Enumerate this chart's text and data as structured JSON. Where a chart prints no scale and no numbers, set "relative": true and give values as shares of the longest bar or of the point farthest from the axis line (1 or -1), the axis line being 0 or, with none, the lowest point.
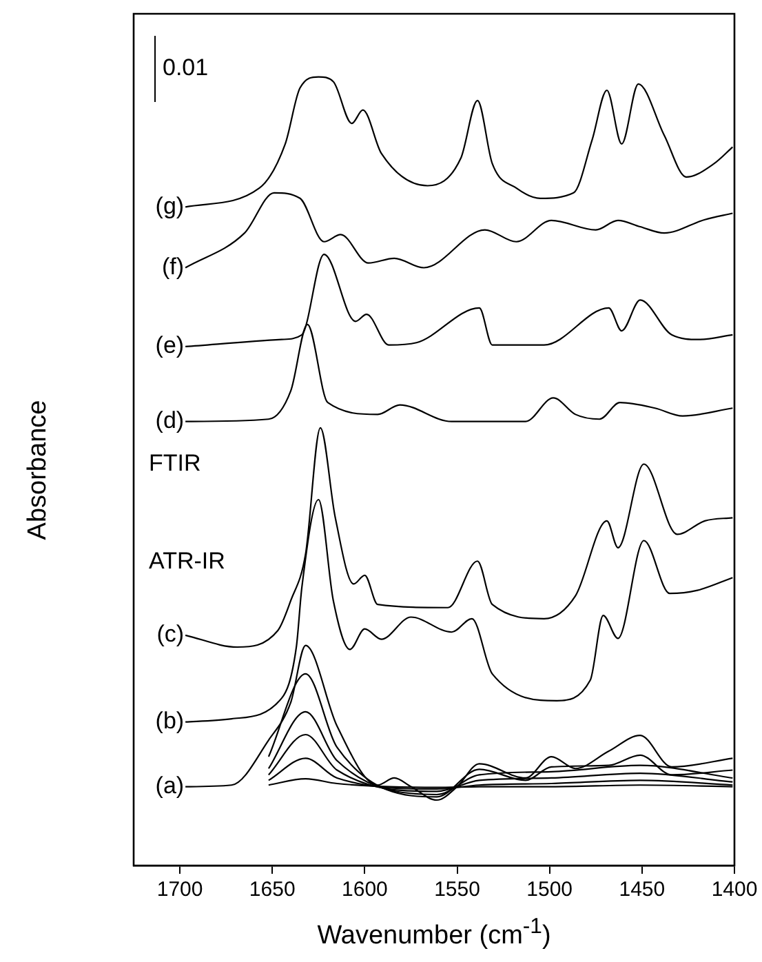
{
  "chart_data": {
    "type": "line",
    "relative": true,
    "xlabel": "Wavenumber (cm$^{-1}$)",
    "ylabel": "Absorbance",
    "xlim": [
      1725,
      1400
    ],
    "xticks": [
      1700,
      1650,
      1600,
      1550,
      1500,
      1450,
      1400
    ],
    "grid": false,
    "legend": false,
    "marker": "none",
    "line_style": "solid",
    "annotations": [
      "0.01",
      "FTIR",
      "ATR-IR"
    ],
    "series": [
      {
        "name": "(g)",
        "color": "#000000",
        "x": [
          1697,
          1657,
          1643,
          1635,
          1625,
          1617,
          1607,
          1601,
          1591,
          1566,
          1548,
          1539,
          1531,
          1518,
          1505,
          1487,
          1477,
          1469,
          1461,
          1452,
          1438,
          1426,
          1411,
          1401
        ],
        "values": [
          0.835,
          0.859,
          0.915,
          0.986,
          1,
          0.994,
          0.941,
          0.958,
          0.903,
          0.862,
          0.897,
          0.97,
          0.89,
          0.859,
          0.846,
          0.853,
          0.92,
          0.983,
          0.915,
          0.991,
          0.926,
          0.873,
          0.89,
          0.911
        ]
      },
      {
        "name": "(f)",
        "color": "#000000",
        "x": [
          1697,
          1665,
          1649,
          1635,
          1622,
          1613,
          1598,
          1584,
          1568,
          1535,
          1518,
          1499,
          1475,
          1463,
          1451,
          1438,
          1416,
          1401
        ],
        "values": [
          0.758,
          0.802,
          0.853,
          0.846,
          0.791,
          0.8,
          0.764,
          0.77,
          0.758,
          0.806,
          0.791,
          0.818,
          0.806,
          0.818,
          0.81,
          0.802,
          0.819,
          0.827
        ]
      },
      {
        "name": "(e)",
        "color": "#000000",
        "x": [
          1697,
          1645,
          1634,
          1622,
          1605,
          1599,
          1587,
          1572,
          1538,
          1531,
          1503,
          1468,
          1461,
          1451,
          1434,
          1419,
          1401
        ],
        "values": [
          0.658,
          0.667,
          0.673,
          0.775,
          0.69,
          0.699,
          0.66,
          0.663,
          0.707,
          0.66,
          0.66,
          0.707,
          0.678,
          0.717,
          0.673,
          0.667,
          0.673
        ]
      },
      {
        "name": "(d)",
        "color": "#000000",
        "x": [
          1697,
          1652,
          1640,
          1631,
          1620,
          1593,
          1581,
          1553,
          1513,
          1498,
          1486,
          1473,
          1462,
          1443,
          1428,
          1401
        ],
        "values": [
          0.563,
          0.566,
          0.602,
          0.686,
          0.587,
          0.572,
          0.584,
          0.563,
          0.563,
          0.593,
          0.572,
          0.566,
          0.587,
          0.58,
          0.57,
          0.58
        ]
      },
      {
        "name": "(c)",
        "color": "#000000",
        "x": [
          1697,
          1669,
          1647,
          1640,
          1632,
          1624,
          1616,
          1606,
          1600,
          1593,
          1555,
          1539,
          1531,
          1503,
          1486,
          1469,
          1463,
          1449,
          1431,
          1416,
          1401
        ],
        "values": [
          0.292,
          0.277,
          0.298,
          0.336,
          0.395,
          0.555,
          0.442,
          0.357,
          0.368,
          0.331,
          0.327,
          0.386,
          0.331,
          0.313,
          0.342,
          0.437,
          0.403,
          0.509,
          0.42,
          0.437,
          0.441
        ]
      },
      {
        "name": "(b)",
        "color": "#000000",
        "x": [
          1697,
          1672,
          1645,
          1637,
          1634,
          1625,
          1617,
          1608,
          1600,
          1591,
          1575,
          1553,
          1542,
          1531,
          1496,
          1478,
          1471,
          1463,
          1449,
          1435,
          1420,
          1401
        ],
        "values": [
          0.182,
          0.186,
          0.212,
          0.277,
          0.353,
          0.464,
          0.336,
          0.274,
          0.3,
          0.287,
          0.315,
          0.296,
          0.313,
          0.243,
          0.209,
          0.235,
          0.317,
          0.288,
          0.412,
          0.345,
          0.349,
          0.365
        ]
      },
      {
        "name": "(a)",
        "color": "#000000",
        "x": [
          1697,
          1672,
          1652,
          1640,
          1632,
          1615,
          1593,
          1584,
          1575,
          1561,
          1550,
          1538,
          1513,
          1499,
          1486,
          1468,
          1451,
          1434,
          1401
        ],
        "values": [
          0.1,
          0.102,
          0.159,
          0.207,
          0.279,
          0.177,
          0.102,
          0.111,
          0.1,
          0.083,
          0.1,
          0.129,
          0.111,
          0.138,
          0.123,
          0.145,
          0.165,
          0.125,
          0.136
        ]
      },
      {
        "color": "#000000",
        "x": [
          1652,
          1632,
          1615,
          1561,
          1538,
          1513,
          1499,
          1468,
          1451,
          1434,
          1401
        ],
        "values": [
          0.138,
          0.243,
          0.15,
          0.087,
          0.122,
          0.108,
          0.125,
          0.127,
          0.14,
          0.115,
          0.121
        ]
      },
      {
        "color": "#000000",
        "x": [
          1652,
          1632,
          1615,
          1561,
          1538,
          1499,
          1451,
          1401
        ],
        "values": [
          0.123,
          0.195,
          0.133,
          0.09,
          0.115,
          0.119,
          0.127,
          0.111
        ]
      },
      {
        "color": "#000000",
        "x": [
          1652,
          1632,
          1615,
          1561,
          1538,
          1499,
          1451,
          1401
        ],
        "values": [
          0.115,
          0.166,
          0.121,
          0.094,
          0.108,
          0.111,
          0.117,
          0.106
        ]
      },
      {
        "color": "#000000",
        "x": [
          1652,
          1632,
          1615,
          1561,
          1538,
          1499,
          1451,
          1401
        ],
        "values": [
          0.108,
          0.136,
          0.111,
          0.097,
          0.102,
          0.104,
          0.108,
          0.102
        ]
      },
      {
        "color": "#000000",
        "x": [
          1652,
          1632,
          1615,
          1561,
          1538,
          1499,
          1451,
          1401
        ],
        "values": [
          0.102,
          0.11,
          0.104,
          0.099,
          0.1,
          0.1,
          0.102,
          0.1
        ]
      }
    ]
  }
}
